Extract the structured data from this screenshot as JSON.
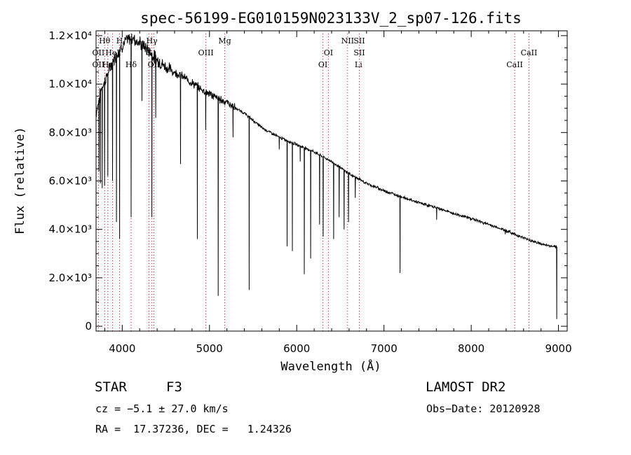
{
  "chart_data": {
    "type": "line",
    "title": "spec-56199-EG010159N023133V_2_sp07-126.fits",
    "xlabel": "Wavelength (Å)",
    "ylabel": "Flux (relative)",
    "xlim": [
      3700,
      9100
    ],
    "ylim": [
      -200,
      12200
    ],
    "x_ticks": [
      4000,
      5000,
      6000,
      7000,
      8000,
      9000
    ],
    "y_ticks": [
      {
        "value": 0,
        "label": "0"
      },
      {
        "value": 2000,
        "label": "2.0×10³"
      },
      {
        "value": 4000,
        "label": "4.0×10³"
      },
      {
        "value": 6000,
        "label": "6.0×10³"
      },
      {
        "value": 8000,
        "label": "8.0×10³"
      },
      {
        "value": 10000,
        "label": "1.0×10⁴"
      },
      {
        "value": 12000,
        "label": "1.2×10⁴"
      }
    ],
    "continuum": [
      [
        3700,
        8800
      ],
      [
        3760,
        9800
      ],
      [
        3820,
        10300
      ],
      [
        3900,
        11000
      ],
      [
        3980,
        11500
      ],
      [
        4050,
        11800
      ],
      [
        4120,
        11900
      ],
      [
        4200,
        11700
      ],
      [
        4300,
        11400
      ],
      [
        4400,
        11000
      ],
      [
        4500,
        10700
      ],
      [
        4600,
        10500
      ],
      [
        4700,
        10300
      ],
      [
        4800,
        10050
      ],
      [
        4900,
        9800
      ],
      [
        5000,
        9600
      ],
      [
        5100,
        9400
      ],
      [
        5200,
        9250
      ],
      [
        5300,
        9000
      ],
      [
        5400,
        8800
      ],
      [
        5500,
        8500
      ],
      [
        5600,
        8200
      ],
      [
        5700,
        8000
      ],
      [
        5800,
        7800
      ],
      [
        6000,
        7500
      ],
      [
        6200,
        7200
      ],
      [
        6400,
        6800
      ],
      [
        6600,
        6300
      ],
      [
        6800,
        5900
      ],
      [
        7000,
        5600
      ],
      [
        7200,
        5350
      ],
      [
        7400,
        5100
      ],
      [
        7600,
        4900
      ],
      [
        7800,
        4650
      ],
      [
        8000,
        4450
      ],
      [
        8200,
        4200
      ],
      [
        8400,
        3950
      ],
      [
        8600,
        3650
      ],
      [
        8800,
        3400
      ],
      [
        8980,
        3250
      ]
    ],
    "absorption": [
      [
        3734,
        6400
      ],
      [
        3750,
        5900
      ],
      [
        3771,
        5700
      ],
      [
        3798,
        5800
      ],
      [
        3835,
        6200
      ],
      [
        3889,
        6000
      ],
      [
        3934,
        4300
      ],
      [
        3970,
        3600
      ],
      [
        4102,
        4500
      ],
      [
        4226,
        9300
      ],
      [
        4340,
        4500
      ],
      [
        4384,
        8600
      ],
      [
        4668,
        6700
      ],
      [
        4861,
        3600
      ],
      [
        4957,
        8100
      ],
      [
        5100,
        1250
      ],
      [
        5270,
        7800
      ],
      [
        5455,
        1500
      ],
      [
        5800,
        7300
      ],
      [
        5890,
        3300
      ],
      [
        5950,
        3100
      ],
      [
        6040,
        6800
      ],
      [
        6087,
        2150
      ],
      [
        6160,
        2800
      ],
      [
        6262,
        4200
      ],
      [
        6303,
        3700
      ],
      [
        6423,
        3600
      ],
      [
        6486,
        4500
      ],
      [
        6543,
        4000
      ],
      [
        6594,
        4300
      ],
      [
        6671,
        5300
      ],
      [
        7184,
        2200
      ],
      [
        7604,
        4400
      ],
      [
        8390,
        3800
      ],
      [
        8980,
        300
      ]
    ],
    "line_markers": [
      {
        "label": "Hθ",
        "x": 3798,
        "row": 0
      },
      {
        "label": "OII",
        "x": 3727,
        "row": 1
      },
      {
        "label": "OII",
        "x": 3727,
        "row": 2
      },
      {
        "label": "Hη",
        "x": 3835,
        "row": 2
      },
      {
        "label": "HeI",
        "x": 3889,
        "row": 1
      },
      {
        "label": "H",
        "x": 3970,
        "row": 0
      },
      {
        "label": "I",
        "x": 3970,
        "row": 1
      },
      {
        "label": "Hδ",
        "x": 4102,
        "row": 2
      },
      {
        "label": "Hγ",
        "x": 4340,
        "row": 0
      },
      {
        "label": "G",
        "x": 4305,
        "row": 1
      },
      {
        "label": "OII",
        "x": 4363,
        "row": 2
      },
      {
        "label": "Mg",
        "x": 5175,
        "row": 0
      },
      {
        "label": "OIII",
        "x": 4959,
        "row": 1
      },
      {
        "label": "OI",
        "x": 6363,
        "row": 1
      },
      {
        "label": "OI",
        "x": 6300,
        "row": 2
      },
      {
        "label": "NII",
        "x": 6583,
        "row": 0
      },
      {
        "label": "SII",
        "x": 6717,
        "row": 0
      },
      {
        "label": "SII",
        "x": 6717,
        "row": 1
      },
      {
        "label": "Li",
        "x": 6708,
        "row": 2
      },
      {
        "label": "CaII",
        "x": 8662,
        "row": 1
      },
      {
        "label": "CaII",
        "x": 8498,
        "row": 2
      }
    ],
    "line_positions": [
      3727,
      3798,
      3835,
      3889,
      3970,
      4102,
      4305,
      4340,
      4363,
      4959,
      5175,
      6300,
      6363,
      6583,
      6717,
      8498,
      8662
    ],
    "grid": false,
    "marker_color": "#cc0000"
  },
  "info": {
    "object_class": "STAR",
    "subclass": "F3",
    "survey": "LAMOST DR2",
    "redshift": "cz = −5.1 ± 27.0 km/s",
    "obs_date": "Obs−Date: 20120928",
    "coords": "RA =  17.37236, DEC =   1.24326"
  }
}
